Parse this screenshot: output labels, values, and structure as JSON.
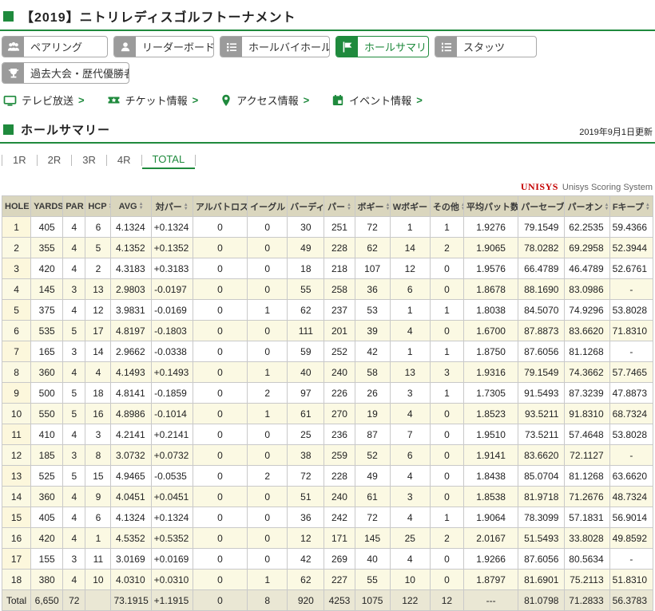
{
  "page": {
    "title": "【2019】ニトリレディスゴルフトーナメント"
  },
  "nav": {
    "buttons": [
      {
        "label": "ペアリング",
        "icon": "people-icon",
        "active": false
      },
      {
        "label": "リーダーボード",
        "icon": "person-icon",
        "active": false
      },
      {
        "label": "ホールバイホール",
        "icon": "list-icon",
        "active": false
      },
      {
        "label": "ホールサマリ",
        "icon": "flag-icon",
        "active": true
      },
      {
        "label": "スタッツ",
        "icon": "numbered-list-icon",
        "active": false
      },
      {
        "label": "過去大会・歴代優勝者",
        "icon": "trophy-icon",
        "active": false
      }
    ],
    "links": [
      {
        "label": "テレビ放送",
        "icon": "tv-icon"
      },
      {
        "label": "チケット情報",
        "icon": "ticket-icon"
      },
      {
        "label": "アクセス情報",
        "icon": "map-pin-icon"
      },
      {
        "label": "イベント情報",
        "icon": "calendar-icon"
      }
    ],
    "link_arrow": ">"
  },
  "section": {
    "title": "ホールサマリー",
    "updated": "2019年9月1日更新"
  },
  "tabs": {
    "items": [
      "1R",
      "2R",
      "3R",
      "4R",
      "TOTAL"
    ],
    "active": "TOTAL"
  },
  "scoring": {
    "logo": "UNISYS",
    "label": "Unisys Scoring System"
  },
  "table": {
    "headers": [
      "HOLE",
      "YARDS",
      "PAR",
      "HCP",
      "AVG",
      "対パー",
      "アルバトロス",
      "イーグル",
      "バーディ",
      "パー",
      "ボギー",
      "Wボギー",
      "その他",
      "平均パット数",
      "パーセーブ",
      "パーオン",
      "Fキープ"
    ],
    "rows": [
      [
        "1",
        "405",
        "4",
        "6",
        "4.1324",
        "+0.1324",
        "0",
        "0",
        "30",
        "251",
        "72",
        "1",
        "1",
        "1.9276",
        "79.1549",
        "62.2535",
        "59.4366"
      ],
      [
        "2",
        "355",
        "4",
        "5",
        "4.1352",
        "+0.1352",
        "0",
        "0",
        "49",
        "228",
        "62",
        "14",
        "2",
        "1.9065",
        "78.0282",
        "69.2958",
        "52.3944"
      ],
      [
        "3",
        "420",
        "4",
        "2",
        "4.3183",
        "+0.3183",
        "0",
        "0",
        "18",
        "218",
        "107",
        "12",
        "0",
        "1.9576",
        "66.4789",
        "46.4789",
        "52.6761"
      ],
      [
        "4",
        "145",
        "3",
        "13",
        "2.9803",
        "-0.0197",
        "0",
        "0",
        "55",
        "258",
        "36",
        "6",
        "0",
        "1.8678",
        "88.1690",
        "83.0986",
        "-"
      ],
      [
        "5",
        "375",
        "4",
        "12",
        "3.9831",
        "-0.0169",
        "0",
        "1",
        "62",
        "237",
        "53",
        "1",
        "1",
        "1.8038",
        "84.5070",
        "74.9296",
        "53.8028"
      ],
      [
        "6",
        "535",
        "5",
        "17",
        "4.8197",
        "-0.1803",
        "0",
        "0",
        "111",
        "201",
        "39",
        "4",
        "0",
        "1.6700",
        "87.8873",
        "83.6620",
        "71.8310"
      ],
      [
        "7",
        "165",
        "3",
        "14",
        "2.9662",
        "-0.0338",
        "0",
        "0",
        "59",
        "252",
        "42",
        "1",
        "1",
        "1.8750",
        "87.6056",
        "81.1268",
        "-"
      ],
      [
        "8",
        "360",
        "4",
        "4",
        "4.1493",
        "+0.1493",
        "0",
        "1",
        "40",
        "240",
        "58",
        "13",
        "3",
        "1.9316",
        "79.1549",
        "74.3662",
        "57.7465"
      ],
      [
        "9",
        "500",
        "5",
        "18",
        "4.8141",
        "-0.1859",
        "0",
        "2",
        "97",
        "226",
        "26",
        "3",
        "1",
        "1.7305",
        "91.5493",
        "87.3239",
        "47.8873"
      ],
      [
        "10",
        "550",
        "5",
        "16",
        "4.8986",
        "-0.1014",
        "0",
        "1",
        "61",
        "270",
        "19",
        "4",
        "0",
        "1.8523",
        "93.5211",
        "91.8310",
        "68.7324"
      ],
      [
        "11",
        "410",
        "4",
        "3",
        "4.2141",
        "+0.2141",
        "0",
        "0",
        "25",
        "236",
        "87",
        "7",
        "0",
        "1.9510",
        "73.5211",
        "57.4648",
        "53.8028"
      ],
      [
        "12",
        "185",
        "3",
        "8",
        "3.0732",
        "+0.0732",
        "0",
        "0",
        "38",
        "259",
        "52",
        "6",
        "0",
        "1.9141",
        "83.6620",
        "72.1127",
        "-"
      ],
      [
        "13",
        "525",
        "5",
        "15",
        "4.9465",
        "-0.0535",
        "0",
        "2",
        "72",
        "228",
        "49",
        "4",
        "0",
        "1.8438",
        "85.0704",
        "81.1268",
        "63.6620"
      ],
      [
        "14",
        "360",
        "4",
        "9",
        "4.0451",
        "+0.0451",
        "0",
        "0",
        "51",
        "240",
        "61",
        "3",
        "0",
        "1.8538",
        "81.9718",
        "71.2676",
        "48.7324"
      ],
      [
        "15",
        "405",
        "4",
        "6",
        "4.1324",
        "+0.1324",
        "0",
        "0",
        "36",
        "242",
        "72",
        "4",
        "1",
        "1.9064",
        "78.3099",
        "57.1831",
        "56.9014"
      ],
      [
        "16",
        "420",
        "4",
        "1",
        "4.5352",
        "+0.5352",
        "0",
        "0",
        "12",
        "171",
        "145",
        "25",
        "2",
        "2.0167",
        "51.5493",
        "33.8028",
        "49.8592"
      ],
      [
        "17",
        "155",
        "3",
        "11",
        "3.0169",
        "+0.0169",
        "0",
        "0",
        "42",
        "269",
        "40",
        "4",
        "0",
        "1.9266",
        "87.6056",
        "80.5634",
        "-"
      ],
      [
        "18",
        "380",
        "4",
        "10",
        "4.0310",
        "+0.0310",
        "0",
        "1",
        "62",
        "227",
        "55",
        "10",
        "0",
        "1.8797",
        "81.6901",
        "75.2113",
        "51.8310"
      ]
    ],
    "total": [
      "Total",
      "6,650",
      "72",
      "",
      "73.1915",
      "+1.1915",
      "0",
      "8",
      "920",
      "4253",
      "1075",
      "122",
      "12",
      "---",
      "81.0798",
      "71.2833",
      "56.3783"
    ]
  },
  "colors": {
    "accent_green": "#1f8a3d",
    "unisys_red": "#c40000",
    "table_header_bg": "#dad6be",
    "row_alt_bg": "#fbf9e3",
    "hole_column_bg": "#fcf7dc",
    "total_row_bg": "#eae7d4"
  }
}
